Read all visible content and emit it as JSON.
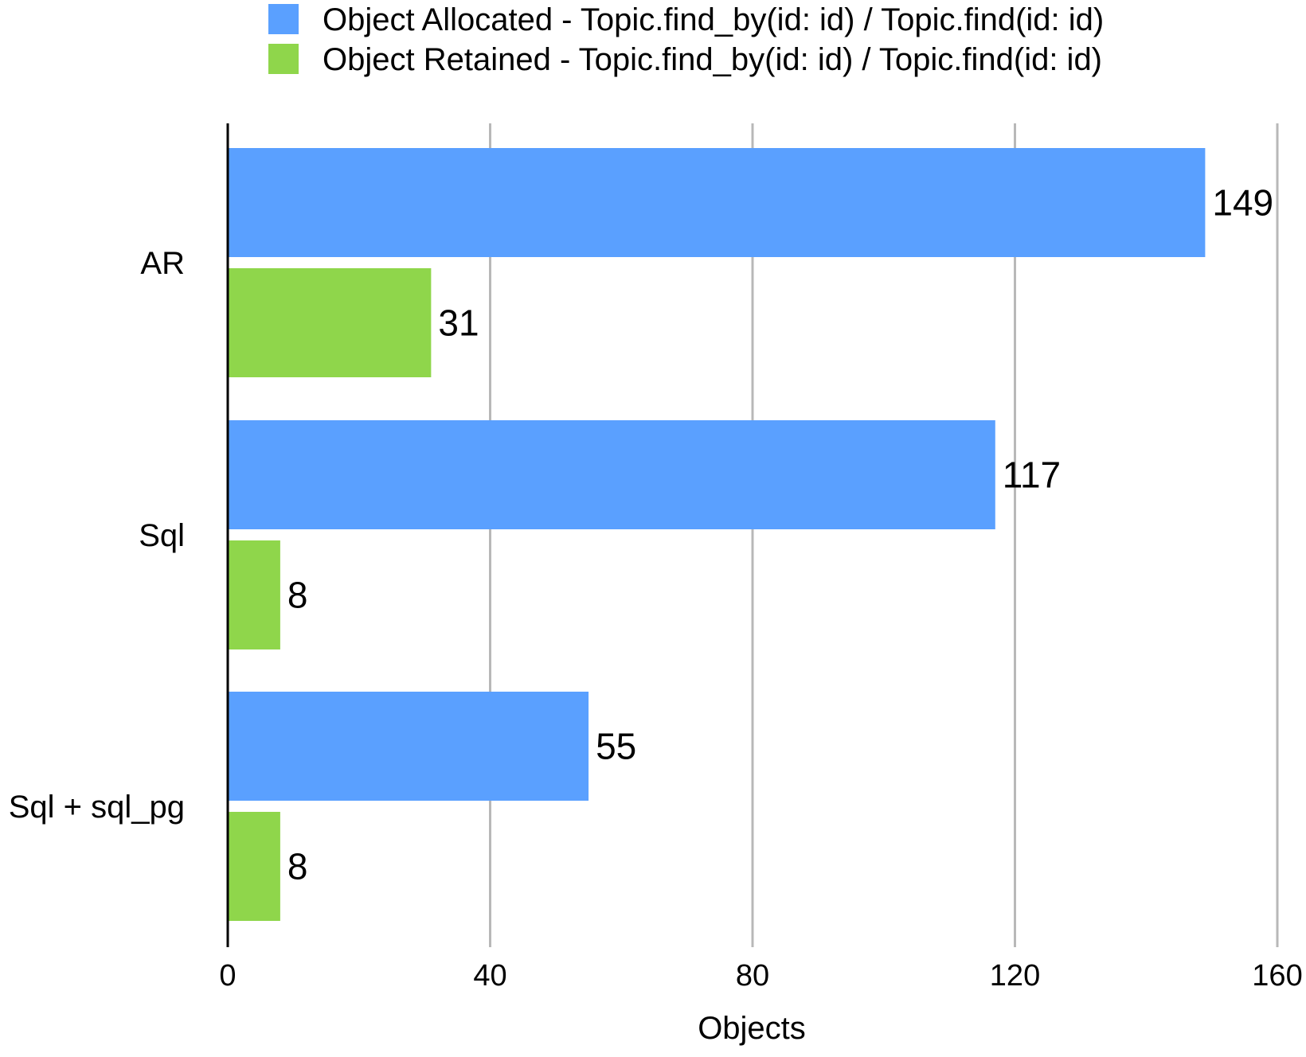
{
  "chart_data": {
    "type": "bar",
    "orientation": "horizontal",
    "categories": [
      "AR",
      "Sql",
      "Sql + sql_pg"
    ],
    "series": [
      {
        "name": "Object Allocated - Topic.find_by(id: id) / Topic.find(id: id)",
        "color": "#5aa0ff",
        "values": [
          149,
          117,
          55
        ]
      },
      {
        "name": "Object Retained - Topic.find_by(id: id) / Topic.find(id: id)",
        "color": "#8fd64b",
        "values": [
          31,
          8,
          8
        ]
      }
    ],
    "xlabel": "Objects",
    "ylabel": "",
    "xlim": [
      0,
      160
    ],
    "xticks": [
      0,
      40,
      80,
      120,
      160
    ],
    "grid": true,
    "legend_position": "top",
    "data_labels": true
  }
}
